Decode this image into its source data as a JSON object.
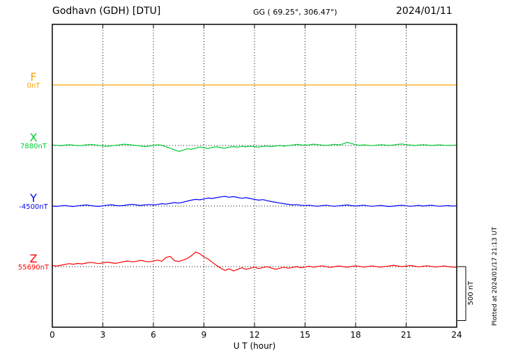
{
  "header": {
    "station_title": "Godhavn (GDH)  [DTU]",
    "coords": "GG ( 69.25°, 306.47°)",
    "date": "2024/01/11"
  },
  "right_side": {
    "scale_label": "500 nT",
    "plotted_note": "Plotted at 2024/01/17 21:13 UT"
  },
  "colors": {
    "frame": "#000000",
    "F": "#FFA500",
    "X": "#00CC33",
    "Y": "#0000FF",
    "Z": "#FF0000"
  },
  "chart_data": {
    "type": "line",
    "title": "Godhavn (GDH) [DTU] magnetogram 2024/01/11",
    "xlabel": "U T (hour)",
    "xlim": [
      0,
      24
    ],
    "xticks": [
      0,
      3,
      6,
      9,
      12,
      15,
      18,
      21,
      24
    ],
    "grid": {
      "vertical_dotted_at": [
        3,
        6,
        9,
        12,
        15,
        18,
        21
      ],
      "horizontal_dotted": "at each series baseline"
    },
    "scale_bar_nT": 500,
    "units": "nT offset from baseline value",
    "series": [
      {
        "name": "F",
        "baseline_label": "0nT",
        "color": "#FFA500",
        "x_start": 0,
        "x_step": 24,
        "values": [
          0,
          0
        ]
      },
      {
        "name": "X",
        "baseline_label": "7880nT",
        "color": "#00CC33",
        "x_start": 0,
        "x_step": 0.25,
        "values": [
          5,
          2,
          -3,
          4,
          8,
          3,
          -2,
          0,
          6,
          10,
          6,
          2,
          -4,
          -8,
          -3,
          2,
          6,
          12,
          9,
          4,
          0,
          -5,
          -10,
          -6,
          0,
          8,
          2,
          -12,
          -25,
          -40,
          -55,
          -45,
          -30,
          -35,
          -25,
          -15,
          -20,
          -28,
          -18,
          -12,
          -20,
          -25,
          -15,
          -10,
          -15,
          -8,
          -12,
          -6,
          -10,
          -15,
          -8,
          -4,
          -10,
          -5,
          0,
          -6,
          -2,
          4,
          10,
          6,
          2,
          6,
          12,
          8,
          4,
          0,
          5,
          10,
          6,
          14,
          30,
          18,
          8,
          2,
          6,
          2,
          -2,
          3,
          8,
          4,
          0,
          5,
          10,
          14,
          8,
          4,
          0,
          4,
          8,
          4,
          0,
          3,
          6,
          2,
          0,
          2,
          4
        ]
      },
      {
        "name": "Y",
        "baseline_label": "-4500nT",
        "color": "#0000FF",
        "x_start": 0,
        "x_step": 0.25,
        "values": [
          0,
          -3,
          2,
          5,
          0,
          -4,
          2,
          6,
          10,
          5,
          0,
          -3,
          2,
          8,
          12,
          6,
          2,
          6,
          12,
          16,
          10,
          6,
          10,
          14,
          10,
          15,
          22,
          18,
          25,
          32,
          28,
          35,
          45,
          55,
          62,
          58,
          66,
          74,
          70,
          78,
          85,
          90,
          82,
          88,
          80,
          72,
          78,
          70,
          62,
          55,
          60,
          50,
          42,
          35,
          28,
          22,
          16,
          10,
          14,
          8,
          4,
          8,
          2,
          -2,
          4,
          8,
          2,
          -2,
          2,
          6,
          10,
          4,
          0,
          4,
          8,
          2,
          -2,
          2,
          6,
          0,
          -4,
          0,
          4,
          8,
          2,
          -2,
          2,
          6,
          0,
          4,
          8,
          2,
          -2,
          2,
          4,
          0,
          2
        ]
      },
      {
        "name": "Z",
        "baseline_label": "55690nT",
        "color": "#FF0000",
        "x_start": 0,
        "x_step": 0.25,
        "values": [
          10,
          5,
          12,
          20,
          28,
          22,
          30,
          25,
          32,
          40,
          34,
          28,
          35,
          42,
          36,
          30,
          38,
          46,
          52,
          44,
          50,
          58,
          50,
          44,
          52,
          60,
          50,
          85,
          95,
          55,
          48,
          60,
          75,
          100,
          135,
          120,
          90,
          70,
          40,
          10,
          -15,
          -35,
          -20,
          -40,
          -25,
          -10,
          -25,
          -15,
          -5,
          -18,
          -8,
          0,
          -12,
          -25,
          -15,
          -5,
          -15,
          -8,
          0,
          -10,
          -4,
          4,
          -5,
          2,
          8,
          0,
          -8,
          0,
          6,
          0,
          -6,
          2,
          8,
          2,
          -4,
          2,
          6,
          0,
          -5,
          2,
          6,
          12,
          6,
          0,
          5,
          10,
          4,
          -2,
          3,
          8,
          2,
          -3,
          2,
          6,
          0,
          -4,
          -6
        ]
      }
    ]
  }
}
